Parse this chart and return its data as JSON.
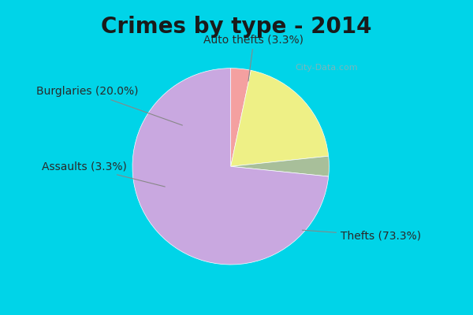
{
  "title": "Crimes by type - 2014",
  "labels": [
    "Auto thefts",
    "Burglaries",
    "Assaults",
    "Thefts"
  ],
  "values": [
    3.3,
    20.0,
    3.3,
    73.3
  ],
  "colors": [
    "#f4a0a0",
    "#eef086",
    "#a8bf9a",
    "#c9a8e0"
  ],
  "label_texts": [
    "Auto thefts (3.3%)",
    "Burglaries (20.0%)",
    "Assaults (3.3%)",
    "Thefts (73.3%)"
  ],
  "background_top": "#00d4e8",
  "background_main": "#d8ede4",
  "title_fontsize": 20,
  "label_fontsize": 11,
  "startangle": 90
}
